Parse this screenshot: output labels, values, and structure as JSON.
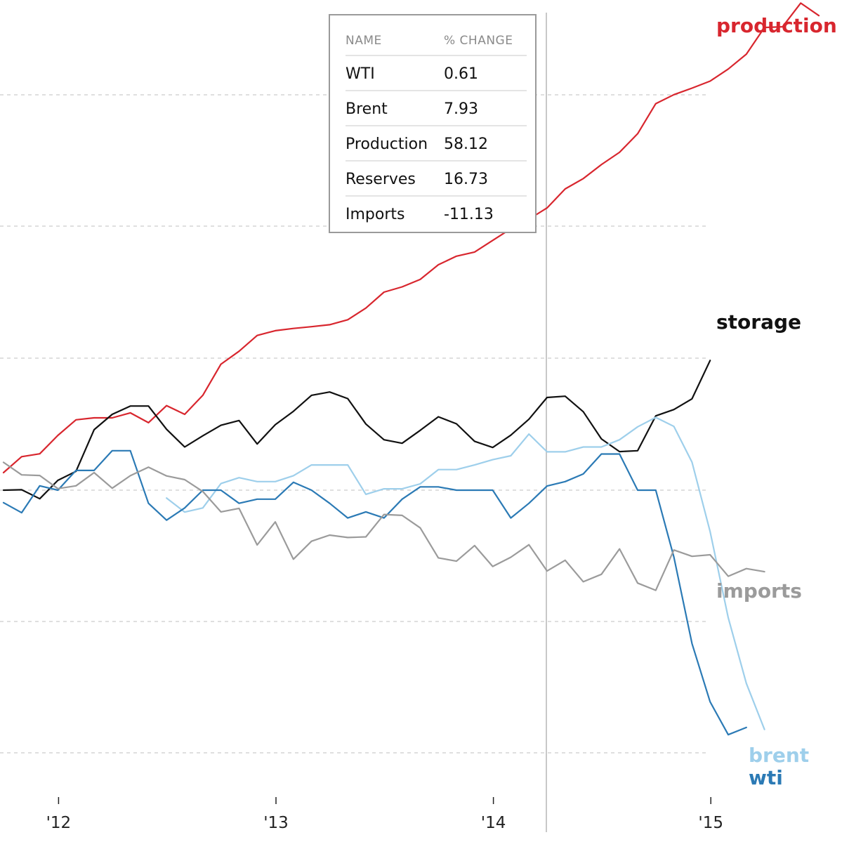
{
  "tooltip": {
    "headers": [
      "NAME",
      "% CHANGE"
    ],
    "rows": [
      {
        "name": "WTI",
        "change": "0.61"
      },
      {
        "name": "Brent",
        "change": "7.93"
      },
      {
        "name": "Production",
        "change": "58.12"
      },
      {
        "name": "Reserves",
        "change": "16.73"
      },
      {
        "name": "Imports",
        "change": "-11.13"
      }
    ]
  },
  "chart_data": {
    "type": "line",
    "title": "",
    "xlabel": "",
    "ylabel": "",
    "grid": "horizontal dashed lines",
    "hover_date": "2014-04",
    "x_ticks": [
      {
        "label": "'12",
        "date": "2012-01"
      },
      {
        "label": "'13",
        "date": "2013-01"
      },
      {
        "label": "'14",
        "date": "2014-01"
      },
      {
        "label": "'15",
        "date": "2015-01"
      }
    ],
    "x_start": "2011-10",
    "series": [
      {
        "name": "production",
        "color": "#d8262e",
        "values": [
          8.0,
          15.3,
          16.6,
          25.0,
          32.1,
          33.0,
          33.0,
          35.3,
          30.8,
          38.6,
          34.6,
          43.3,
          57.5,
          63.4,
          70.6,
          72.8,
          73.8,
          74.6,
          75.5,
          77.8,
          83.1,
          90.4,
          92.8,
          96.2,
          102.9,
          106.8,
          108.7,
          114.0,
          119.3,
          123.7,
          128.8,
          137.5,
          142.2,
          148.6,
          154.2,
          162.7,
          176.4,
          180.5,
          183.5,
          186.7,
          192.2,
          199.0,
          211.2,
          211.5,
          222.3,
          216.6
        ]
      },
      {
        "name": "storage",
        "color": "#111111",
        "values": [
          0.0,
          0.2,
          -3.9,
          4.5,
          8.6,
          27.6,
          34.6,
          38.4,
          38.4,
          27.8,
          19.7,
          24.8,
          29.6,
          31.8,
          21.1,
          29.9,
          36.0,
          43.3,
          44.8,
          41.8,
          30.2,
          23.0,
          21.4,
          27.3,
          33.5,
          30.3,
          22.3,
          19.5,
          25.1,
          32.4,
          42.3,
          42.9,
          35.8,
          23.4,
          17.6,
          18.0,
          33.9,
          36.8,
          41.7,
          59.2
        ]
      },
      {
        "name": "brent",
        "color": "#9ecfeb",
        "values": [
          null,
          null,
          null,
          null,
          null,
          null,
          null,
          null,
          null,
          -3.6,
          -10.0,
          -8.1,
          3.0,
          5.7,
          3.9,
          3.9,
          6.6,
          11.5,
          11.5,
          11.5,
          -1.9,
          0.6,
          0.6,
          2.9,
          9.4,
          9.4,
          11.5,
          13.9,
          15.7,
          25.6,
          17.5,
          17.5,
          19.7,
          19.7,
          23.0,
          28.9,
          33.2,
          29.1,
          12.8,
          -18.9,
          -58.2,
          -88.2,
          -109.2
        ]
      },
      {
        "name": "wti",
        "color": "#2b7ab5",
        "values": [
          -5.7,
          -10.3,
          2.0,
          0.0,
          9.0,
          9.0,
          18.0,
          18.0,
          -6.0,
          -13.7,
          -8.1,
          0.0,
          0.0,
          -6.0,
          -4.1,
          -4.1,
          3.6,
          0.0,
          -6.0,
          -12.7,
          -9.9,
          -12.7,
          -4.1,
          1.5,
          1.5,
          0.0,
          0.0,
          0.0,
          -12.7,
          -6.0,
          1.9,
          3.9,
          7.4,
          16.5,
          16.5,
          0.0,
          0.0,
          -30.5,
          -70.0,
          -96.6,
          -111.6,
          -108.3
        ]
      },
      {
        "name": "imports",
        "color": "#9b9b9b",
        "values": [
          12.7,
          7.0,
          6.7,
          0.7,
          2.0,
          8.0,
          0.9,
          6.6,
          10.5,
          6.5,
          4.8,
          -0.6,
          -9.9,
          -8.3,
          -25.0,
          -14.5,
          -31.5,
          -23.3,
          -20.5,
          -21.6,
          -21.3,
          -11.1,
          -11.5,
          -17.2,
          -30.9,
          -32.4,
          -25.3,
          -34.8,
          -30.6,
          -24.9,
          -36.9,
          -32.0,
          -41.8,
          -38.4,
          -26.8,
          -42.4,
          -45.7,
          -27.3,
          -30.2,
          -29.5,
          -39.3,
          -35.8,
          -37.2
        ]
      }
    ],
    "series_labels": [
      {
        "text": "production",
        "color": "#d8262e"
      },
      {
        "text": "storage",
        "color": "#111111"
      },
      {
        "text": "imports",
        "color": "#9b9b9b"
      },
      {
        "text": "brent",
        "color": "#9ecfeb"
      },
      {
        "text": "wti",
        "color": "#2b7ab5"
      }
    ]
  }
}
